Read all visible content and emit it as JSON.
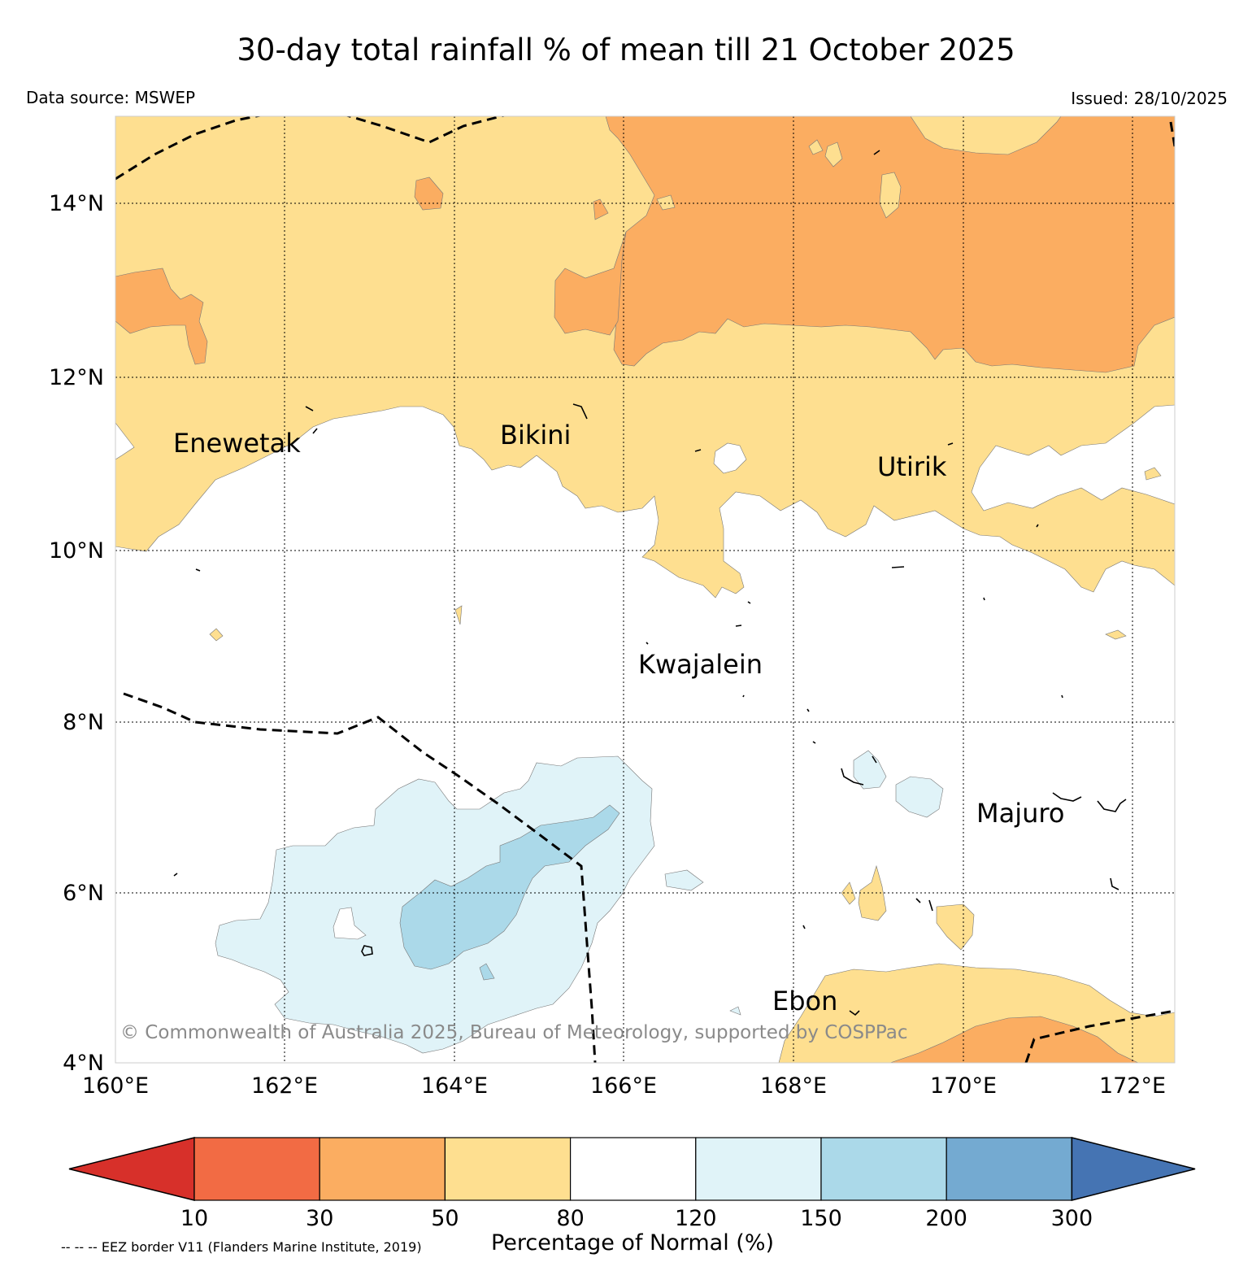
{
  "title": "30-day total rainfall % of mean till 21 October 2025",
  "data_source": "Data source: MSWEP",
  "issued": "Issued: 28/10/2025",
  "lon_ticks": [
    "160°E",
    "162°E",
    "164°E",
    "166°E",
    "168°E",
    "170°E",
    "172°E"
  ],
  "lat_ticks": [
    "14°N",
    "12°N",
    "10°N",
    "8°N",
    "6°N",
    "4°N"
  ],
  "places": {
    "enewetak": "Enewetak",
    "bikini": "Bikini",
    "utirik": "Utirik",
    "kwajalein": "Kwajalein",
    "majuro": "Majuro",
    "ebon": "Ebon"
  },
  "copyright": "© Commonwealth of Australia 2025, Bureau of Meteorology, supported by COSPPac",
  "colorbar": {
    "label": "Percentage of Normal (%)",
    "boundaries": [
      "10",
      "30",
      "50",
      "80",
      "120",
      "150",
      "200",
      "300"
    ],
    "colors": [
      "#d7302a",
      "#f26b44",
      "#fbad61",
      "#fedf90",
      "#ffffff",
      "#e0f3f8",
      "#abd9e9",
      "#74aad1",
      "#4574b3"
    ]
  },
  "legend_note": "-- -- -- EEZ border V11 (Flanders Marine Institute, 2019)"
}
